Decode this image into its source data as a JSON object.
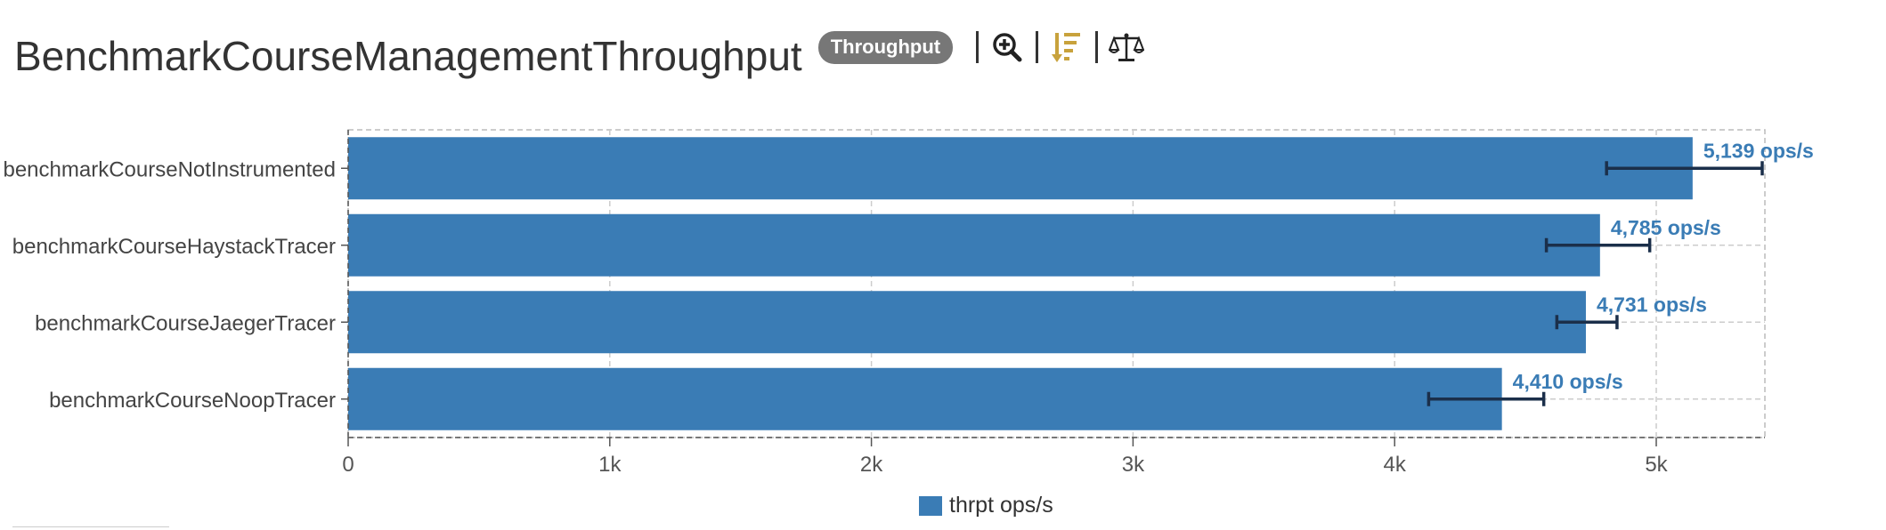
{
  "header": {
    "title": "BenchmarkCourseManagementThroughput",
    "badge": "Throughput",
    "tools": [
      {
        "icon": "zoom-in-icon"
      },
      {
        "icon": "sort-descending-icon",
        "color": "#c8a23c"
      },
      {
        "icon": "balance-scale-icon"
      }
    ]
  },
  "chart_data": {
    "type": "bar",
    "orientation": "horizontal",
    "categories": [
      "benchmarkCourseNotInstrumented",
      "benchmarkCourseHaystackTracer",
      "benchmarkCourseJaegerTracer",
      "benchmarkCourseNoopTracer"
    ],
    "series": [
      {
        "name": "thrpt ops/s",
        "values": [
          5139,
          4785,
          4731,
          4410
        ],
        "error_low": [
          4810,
          4580,
          4620,
          4130
        ],
        "error_high": [
          5405,
          4975,
          4850,
          4570
        ],
        "data_labels": [
          "5,139 ops/s",
          "4,785 ops/s",
          "4,731 ops/s",
          "4,410 ops/s"
        ]
      }
    ],
    "xlim": [
      0,
      5400
    ],
    "xticks": [
      0,
      1000,
      2000,
      3000,
      4000,
      5000
    ],
    "xtick_labels": [
      "0",
      "1k",
      "2k",
      "3k",
      "4k",
      "5k"
    ],
    "grid": true,
    "legend_position": "bottom-center",
    "colors": {
      "bar": "#3a7cb5",
      "error_bar": "#1b2f4a",
      "data_label": "#3a7cb5"
    }
  },
  "legend": {
    "label": "thrpt ops/s"
  }
}
